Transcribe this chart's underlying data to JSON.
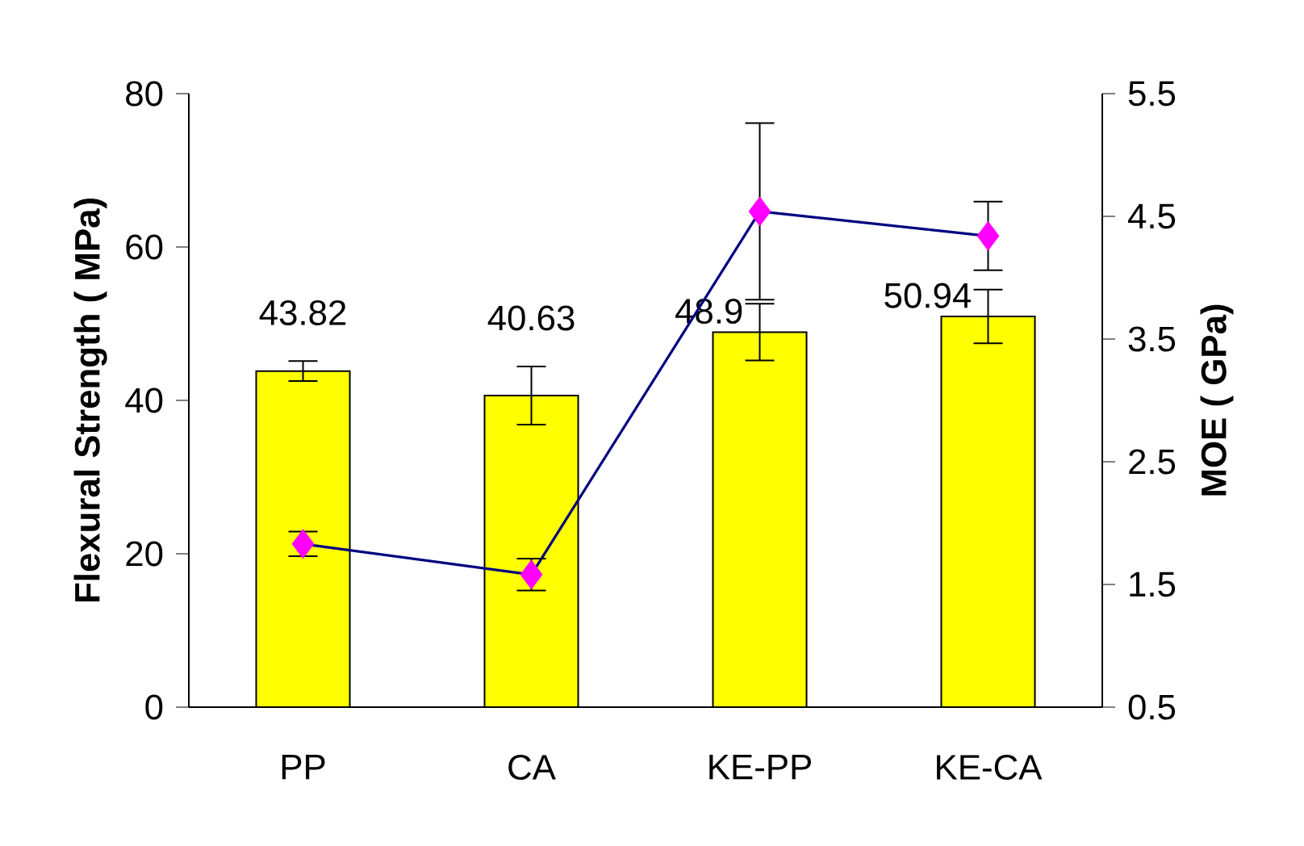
{
  "chart_data": {
    "type": "bar",
    "categories": [
      "PP",
      "CA",
      "KE-PP",
      "KE-CA"
    ],
    "ylabel": "Flexural Strength ( MPa)",
    "y2label": "MOE ( GPa)",
    "ylim": [
      0,
      80
    ],
    "yticks": [
      0,
      20,
      40,
      60,
      80
    ],
    "y2lim": [
      0.5,
      5.5
    ],
    "y2ticks": [
      0.5,
      1.5,
      2.5,
      3.5,
      4.5,
      5.5
    ],
    "series": [
      {
        "color": "#ffff00",
        "values": [
          43.82,
          40.63,
          48.9,
          50.94
        ],
        "errors": [
          1.3,
          3.8,
          3.7,
          3.5
        ],
        "value_labels": [
          "43.82",
          "40.63",
          "48.9",
          "50.94"
        ]
      },
      {
        "type": "line",
        "axis": "y2",
        "color": "#000080",
        "colors": [
          "#ff00ff",
          "#ff00ff",
          "#ff00ff",
          "#ff00ff"
        ],
        "marker": "diamond",
        "values": [
          1.83,
          1.58,
          4.54,
          4.34
        ],
        "errors": [
          0.1,
          0.13,
          0.72,
          0.28
        ]
      }
    ]
  }
}
